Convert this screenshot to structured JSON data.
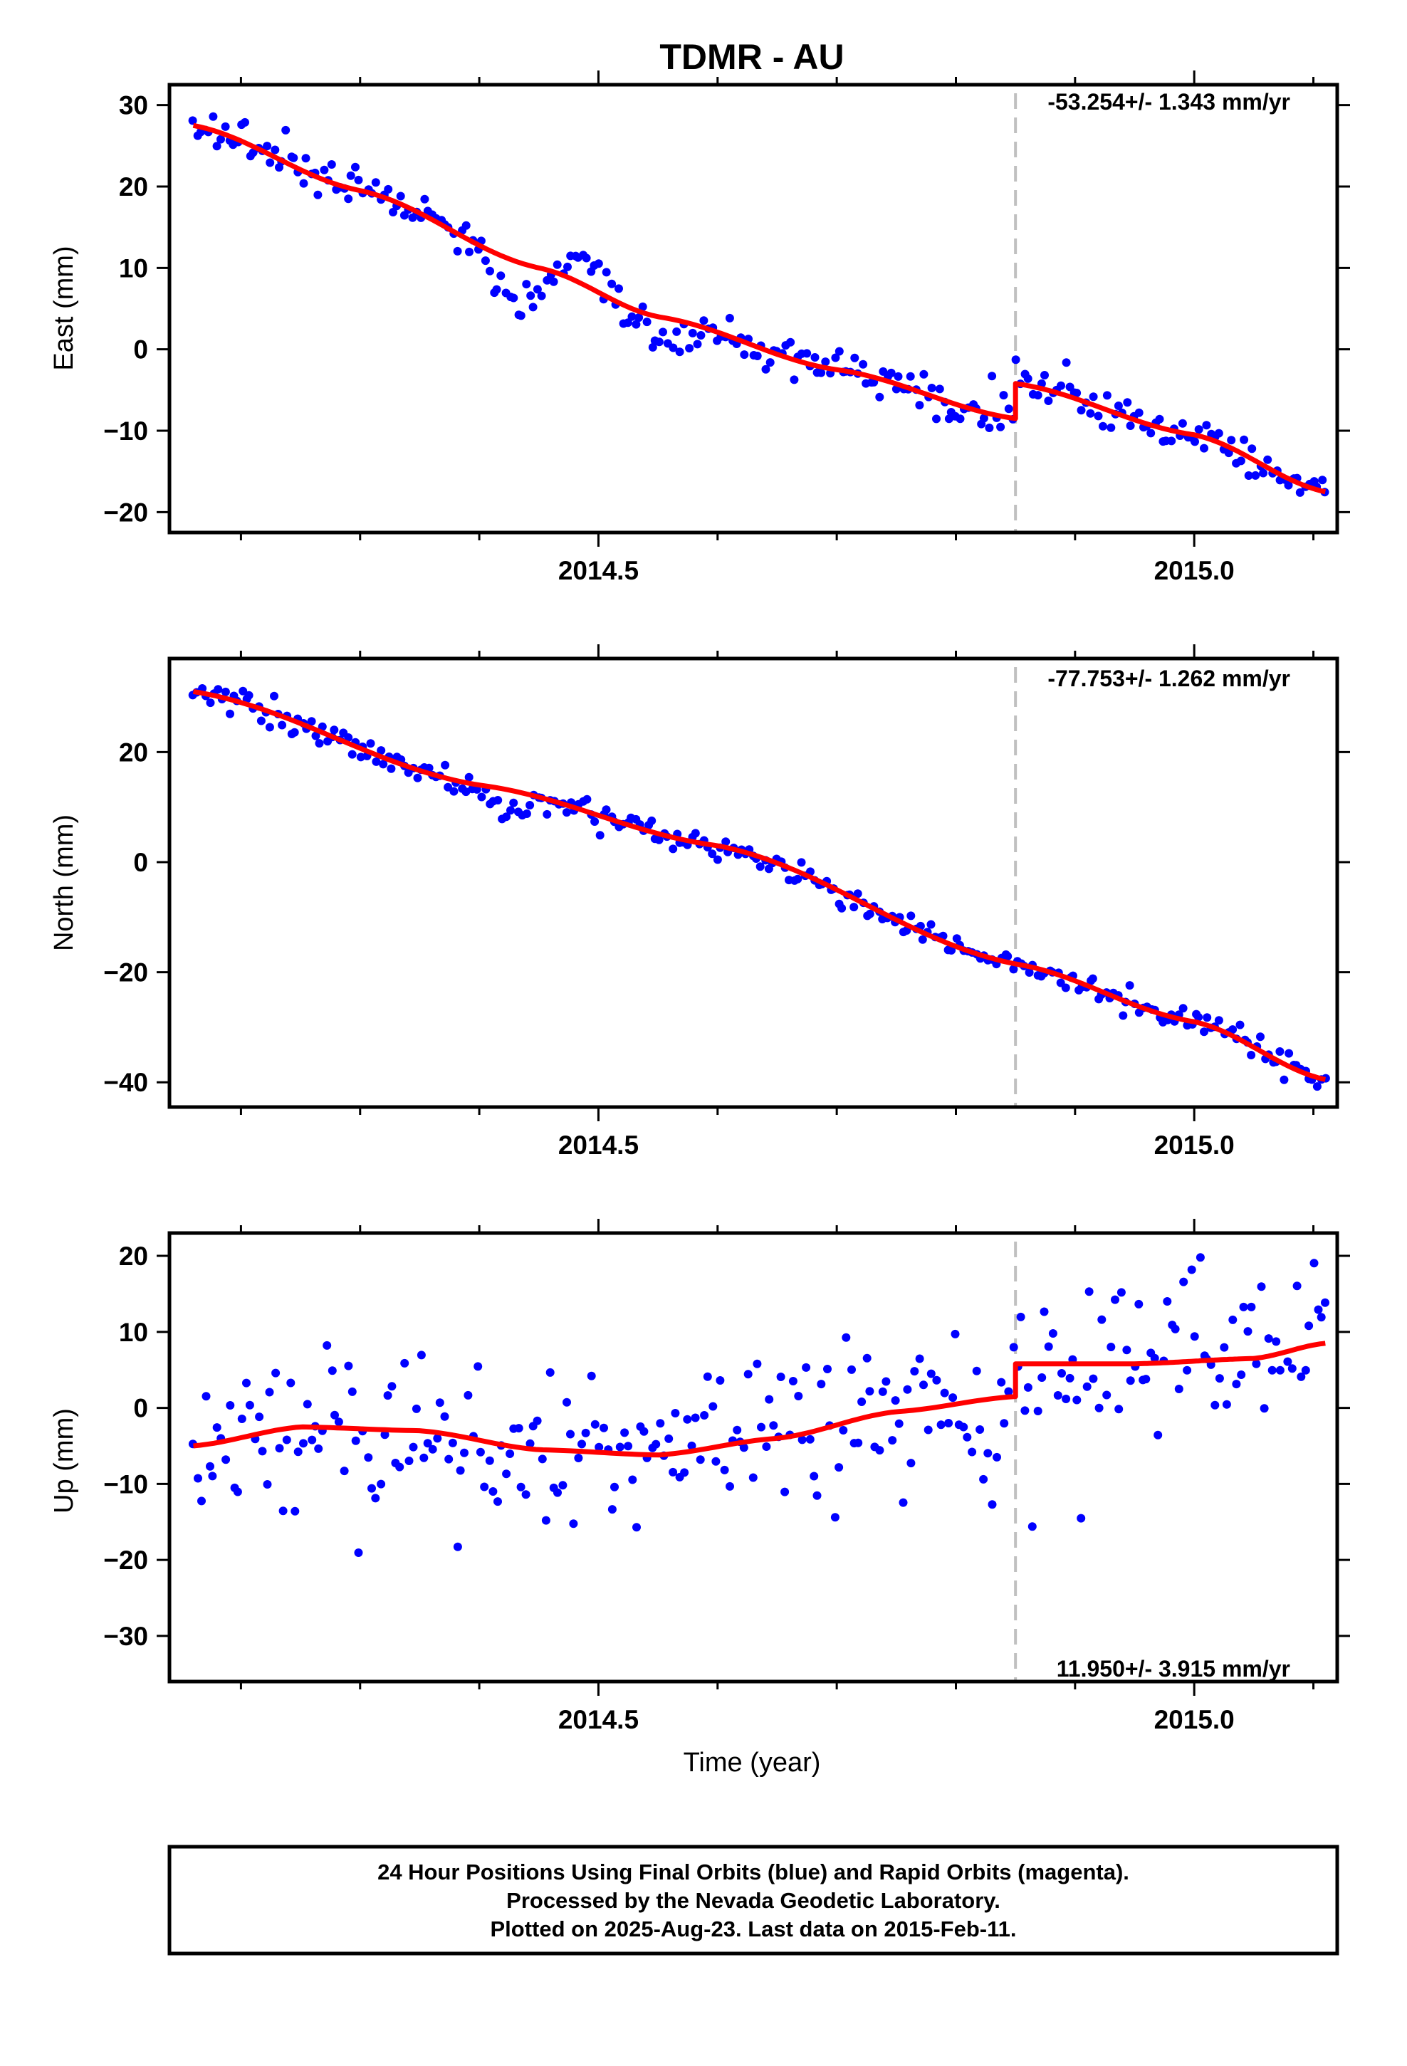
{
  "title": "TDMR - AU",
  "xlabel": "Time (year)",
  "caption": [
    "24 Hour Positions Using Final Orbits (blue) and Rapid Orbits (magenta).",
    "Processed by the Nevada Geodetic Laboratory.",
    "Plotted on 2025-Aug-23. Last data on 2015-Feb-11."
  ],
  "colors": {
    "data": "#0000ff",
    "fit": "#ff0000",
    "event_line": "#c0c0c0",
    "frame": "#000000"
  },
  "chart_data": [
    {
      "type": "scatter",
      "ylabel": "East (mm)",
      "rate_text": "-53.254+/- 1.343 mm/yr",
      "rate_position": "top-right",
      "xlim": [
        2014.14,
        2015.12
      ],
      "ylim": [
        -22.5,
        32.5
      ],
      "yticks": [
        "30",
        "20",
        "10",
        "0",
        "−10",
        "−20"
      ],
      "ytick_values": [
        30,
        20,
        10,
        0,
        -10,
        -20
      ],
      "xtick_labels": [
        "2014.5",
        "2015.0"
      ],
      "xtick_values": [
        2014.5,
        2015.0
      ],
      "event_epoch": 2014.85,
      "model": {
        "kind": "piecewise",
        "start": 2014.16,
        "end": 2015.11,
        "before": [
          [
            2014.16,
            27.5
          ],
          [
            2014.3,
            19.5
          ],
          [
            2014.45,
            10
          ],
          [
            2014.55,
            4
          ],
          [
            2014.7,
            -2.5
          ],
          [
            2014.85,
            -8.5
          ]
        ],
        "after": [
          [
            2014.85,
            -4.2
          ],
          [
            2015.0,
            -10.5
          ],
          [
            2015.11,
            -17.5
          ]
        ]
      },
      "scatter": {
        "count": 280,
        "sigma": 1.7,
        "excursions": [
          [
            2014.4,
            2014.46,
            -5
          ],
          [
            2014.47,
            2014.51,
            3
          ],
          [
            2014.53,
            2014.58,
            -3
          ]
        ]
      }
    },
    {
      "type": "scatter",
      "ylabel": "North (mm)",
      "rate_text": "-77.753+/- 1.262 mm/yr",
      "rate_position": "top-right",
      "xlim": [
        2014.14,
        2015.12
      ],
      "ylim": [
        -44.5,
        37
      ],
      "yticks": [
        "20",
        "0",
        "−20",
        "−40"
      ],
      "ytick_values": [
        20,
        0,
        -20,
        -40
      ],
      "xtick_labels": [
        "2014.5",
        "2015.0"
      ],
      "xtick_values": [
        2014.5,
        2015.0
      ],
      "event_epoch": 2014.85,
      "model": {
        "kind": "piecewise",
        "start": 2014.16,
        "end": 2015.11,
        "before": [
          [
            2014.16,
            31
          ],
          [
            2014.4,
            14
          ],
          [
            2014.6,
            3
          ],
          [
            2014.85,
            -18.5
          ]
        ],
        "after": [
          [
            2014.85,
            -18.5
          ],
          [
            2015.0,
            -29
          ],
          [
            2015.11,
            -39.5
          ]
        ]
      },
      "scatter": {
        "count": 280,
        "sigma": 1.6,
        "excursions": [
          [
            2014.4,
            2014.45,
            -4
          ]
        ]
      }
    },
    {
      "type": "scatter",
      "ylabel": "Up (mm)",
      "rate_text": "11.950+/- 3.915 mm/yr",
      "rate_position": "bottom-right",
      "xlim": [
        2014.14,
        2015.12
      ],
      "ylim": [
        -36,
        23
      ],
      "yticks": [
        "20",
        "10",
        "0",
        "−10",
        "−20",
        "−30"
      ],
      "ytick_values": [
        20,
        10,
        0,
        -10,
        -20,
        -30
      ],
      "xtick_labels": [
        "2014.5",
        "2015.0"
      ],
      "xtick_values": [
        2014.5,
        2015.0
      ],
      "event_epoch": 2014.85,
      "model": {
        "kind": "piecewise",
        "start": 2014.16,
        "end": 2015.11,
        "before": [
          [
            2014.16,
            -5
          ],
          [
            2014.25,
            -2.5
          ],
          [
            2014.35,
            -3
          ],
          [
            2014.45,
            -5.5
          ],
          [
            2014.55,
            -6.2
          ],
          [
            2014.65,
            -4
          ],
          [
            2014.75,
            -0.5
          ],
          [
            2014.85,
            1.5
          ]
        ],
        "after": [
          [
            2014.85,
            5.8
          ],
          [
            2014.95,
            5.8
          ],
          [
            2015.05,
            6.5
          ],
          [
            2015.11,
            8.5
          ]
        ]
      },
      "scatter": {
        "count": 280,
        "sigma": 7.5,
        "excursions": []
      }
    }
  ]
}
